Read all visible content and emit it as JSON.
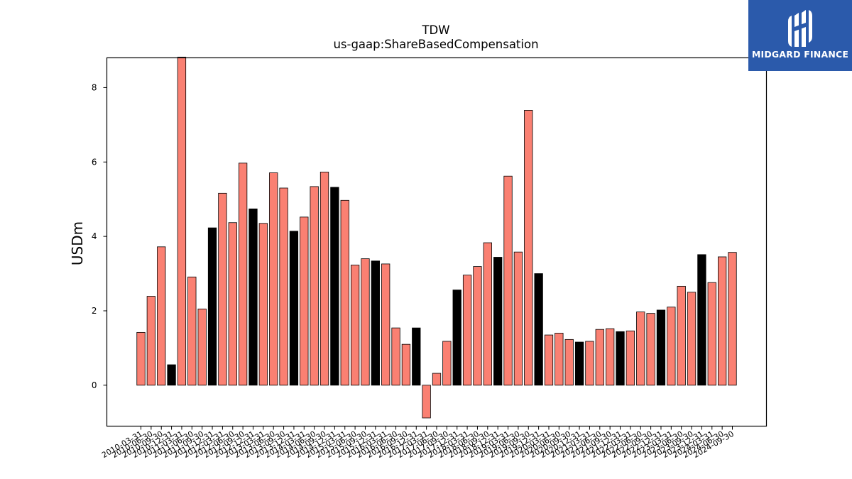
{
  "brand": {
    "name": "MIDGARD FINANCE",
    "bg_color": "#2b5aab",
    "text_color": "#ffffff",
    "icon": "midgard-logo-icon"
  },
  "chart_data": {
    "type": "bar",
    "title": "TDW",
    "subtitle": "us-gaap:ShareBasedCompensation",
    "ylabel": "USDm",
    "xlabel": "",
    "ylim": [
      -1.1,
      8.8
    ],
    "yticks": [
      0,
      2,
      4,
      6,
      8
    ],
    "grid": false,
    "colors": {
      "default": "#fa8072",
      "highlight": "#000000",
      "edge": "#000000"
    },
    "categories": [
      "2010-03-31",
      "2010-06-30",
      "2010-09-30",
      "2010-12-31",
      "2011-03-31",
      "2011-06-30",
      "2011-09-30",
      "2011-12-31",
      "2012-03-31",
      "2012-06-30",
      "2012-09-30",
      "2012-12-31",
      "2013-03-31",
      "2013-06-30",
      "2013-09-30",
      "2013-12-31",
      "2014-03-31",
      "2014-06-30",
      "2014-09-30",
      "2014-12-31",
      "2015-03-31",
      "2015-06-30",
      "2015-09-30",
      "2015-12-31",
      "2016-03-31",
      "2016-06-30",
      "2016-09-30",
      "2016-12-31",
      "2017-03-31",
      "2017-06-30",
      "2017-09-30",
      "2017-12-31",
      "2018-03-31",
      "2018-06-30",
      "2018-09-30",
      "2018-12-31",
      "2019-03-31",
      "2019-06-30",
      "2019-09-30",
      "2019-12-31",
      "2020-03-31",
      "2020-06-30",
      "2020-09-30",
      "2020-12-31",
      "2021-03-31",
      "2021-06-30",
      "2021-09-30",
      "2021-12-31",
      "2022-03-31",
      "2022-06-30",
      "2022-09-30",
      "2022-12-31",
      "2023-03-31",
      "2023-06-30",
      "2023-09-30",
      "2023-12-31",
      "2024-03-31",
      "2024-06-30",
      "2024-09-30"
    ],
    "series": [
      {
        "values": [
          1.42,
          2.39,
          3.72,
          0.55,
          8.82,
          2.91,
          2.05,
          4.23,
          5.16,
          4.37,
          5.97,
          4.74,
          4.35,
          5.71,
          5.3,
          4.14,
          4.52,
          5.34,
          5.73,
          5.32,
          4.97,
          3.23,
          3.4,
          3.34,
          3.26,
          1.54,
          1.1,
          1.54,
          -0.88,
          0.32,
          1.18,
          2.56,
          2.96,
          3.19,
          3.83,
          3.44,
          5.62,
          3.58,
          7.39,
          3.0,
          1.35,
          1.4,
          1.23,
          1.16,
          1.18,
          1.5,
          1.52,
          1.44,
          1.46,
          1.97,
          1.93,
          2.02,
          2.1,
          2.66,
          2.5,
          3.51,
          2.76,
          3.45,
          3.57
        ],
        "highlight": [
          false,
          false,
          false,
          true,
          false,
          false,
          false,
          true,
          false,
          false,
          false,
          true,
          false,
          false,
          false,
          true,
          false,
          false,
          false,
          true,
          false,
          false,
          false,
          true,
          false,
          false,
          false,
          true,
          false,
          false,
          false,
          true,
          false,
          false,
          false,
          true,
          false,
          false,
          false,
          true,
          false,
          false,
          false,
          true,
          false,
          false,
          false,
          true,
          false,
          false,
          false,
          true,
          false,
          false,
          false,
          true,
          false,
          false,
          false
        ]
      }
    ]
  }
}
